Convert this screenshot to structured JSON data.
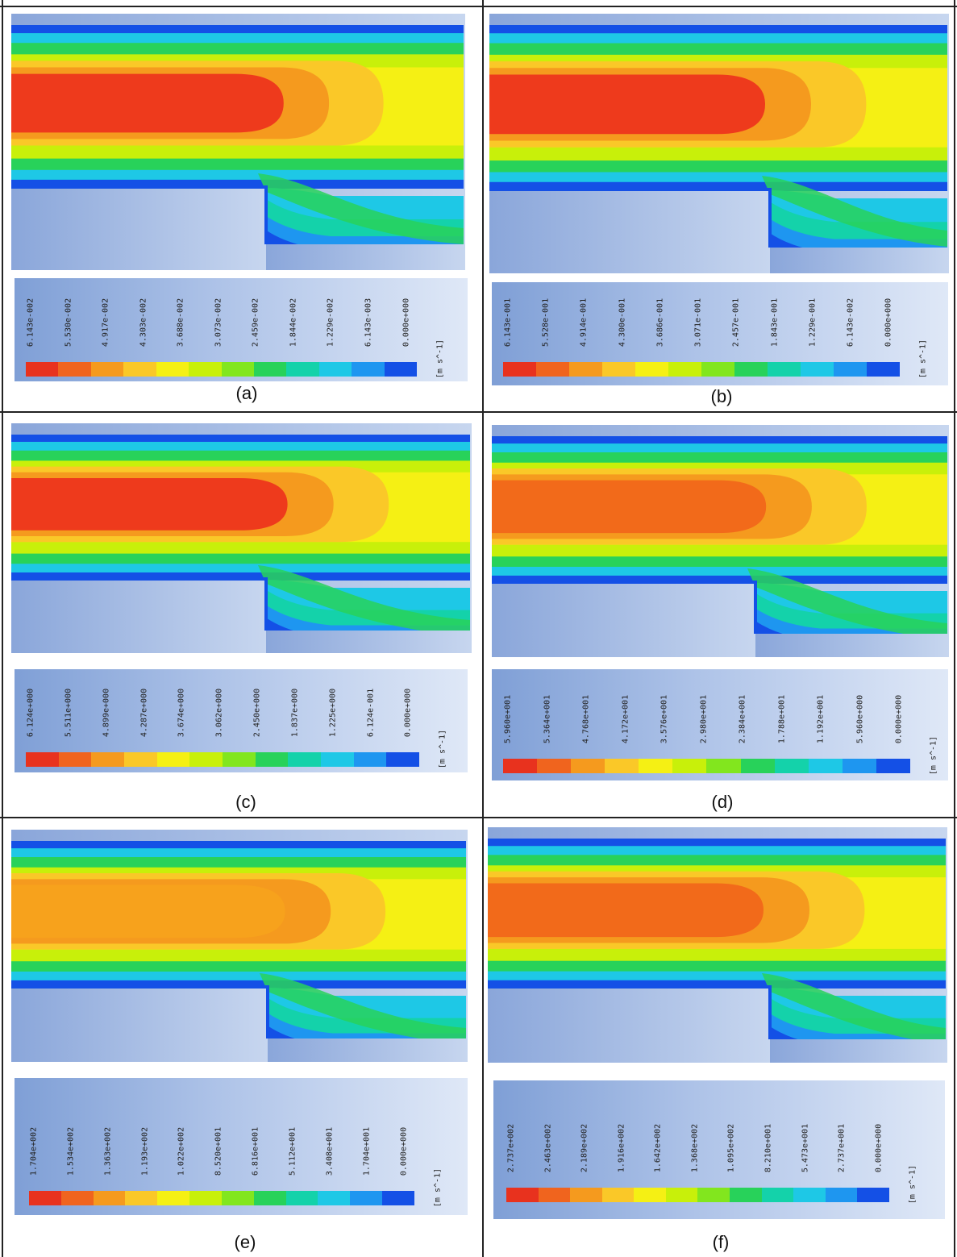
{
  "figure": {
    "panels": [
      {
        "id": "a",
        "caption": "(a)",
        "legend_ticks": [
          "6.143e-002",
          "5.530e-002",
          "4.917e-002",
          "4.303e-002",
          "3.688e-002",
          "3.073e-002",
          "2.459e-002",
          "1.844e-002",
          "1.229e-002",
          "6.143e-003",
          "0.000e+000"
        ],
        "unit": "[m s^-1]",
        "core": "red"
      },
      {
        "id": "b",
        "caption": "(b)",
        "legend_ticks": [
          "6.143e-001",
          "5.528e-001",
          "4.914e-001",
          "4.300e-001",
          "3.686e-001",
          "3.071e-001",
          "2.457e-001",
          "1.843e-001",
          "1.229e-001",
          "6.143e-002",
          "0.000e+000"
        ],
        "unit": "[m s^-1]",
        "core": "red"
      },
      {
        "id": "c",
        "caption": "(c)",
        "legend_ticks": [
          "6.124e+000",
          "5.511e+000",
          "4.899e+000",
          "4.287e+000",
          "3.674e+000",
          "3.062e+000",
          "2.450e+000",
          "1.837e+000",
          "1.225e+000",
          "6.124e-001",
          "0.000e+000"
        ],
        "unit": "[m s^-1]",
        "core": "red"
      },
      {
        "id": "d",
        "caption": "(d)",
        "legend_ticks": [
          "5.960e+001",
          "5.364e+001",
          "4.768e+001",
          "4.172e+001",
          "3.576e+001",
          "2.980e+001",
          "2.384e+001",
          "1.788e+001",
          "1.192e+001",
          "5.960e+000",
          "0.000e+000"
        ],
        "unit": "[m s^-1]",
        "core": "orange"
      },
      {
        "id": "e",
        "caption": "(e)",
        "legend_ticks": [
          "1.704e+002",
          "1.534e+002",
          "1.363e+002",
          "1.193e+002",
          "1.022e+002",
          "8.520e+001",
          "6.816e+001",
          "5.112e+001",
          "3.408e+001",
          "1.704e+001",
          "0.000e+000"
        ],
        "unit": "[m s^-1]",
        "core": "light-orange"
      },
      {
        "id": "f",
        "caption": "(f)",
        "legend_ticks": [
          "2.737e+002",
          "2.463e+002",
          "2.189e+002",
          "1.916e+002",
          "1.642e+002",
          "1.368e+002",
          "1.095e+002",
          "8.210e+001",
          "5.473e+001",
          "2.737e+001",
          "0.000e+000"
        ],
        "unit": "[m s^-1]",
        "core": "orange"
      }
    ],
    "colormap": [
      "#e8321e",
      "#f0641e",
      "#f59a1e",
      "#fac828",
      "#f5f014",
      "#c8f00a",
      "#82e61e",
      "#28d25a",
      "#14d2aa",
      "#1ec8e6",
      "#1e96f0",
      "#1450e6"
    ]
  }
}
